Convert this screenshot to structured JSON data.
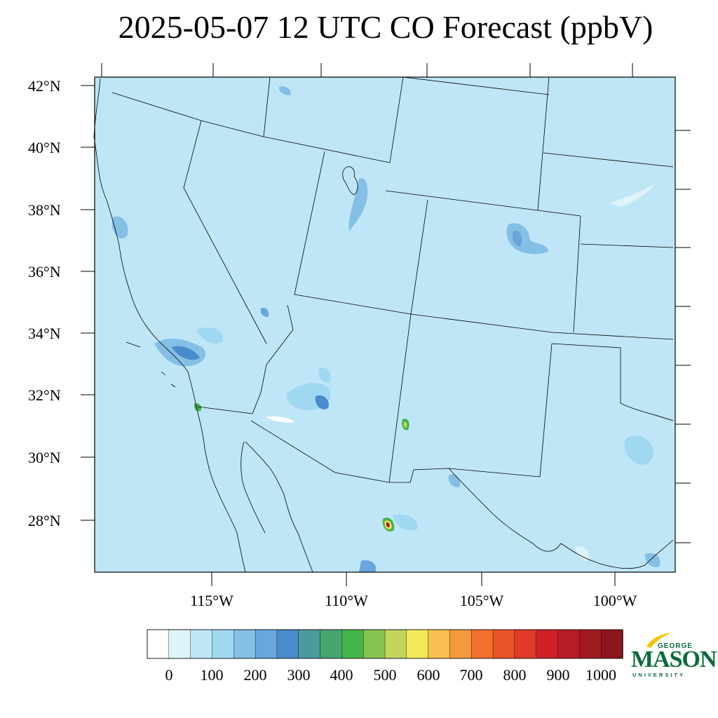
{
  "title": "2025-05-07 12 UTC CO Forecast (ppbV)",
  "lat_labels": [
    "42°N",
    "40°N",
    "38°N",
    "36°N",
    "34°N",
    "32°N",
    "30°N",
    "28°N"
  ],
  "lon_labels": [
    "115°W",
    "110°W",
    "105°W",
    "100°W"
  ],
  "colorbar": {
    "labels": [
      "0",
      "100",
      "200",
      "300",
      "400",
      "500",
      "600",
      "700",
      "800",
      "900",
      "1000"
    ],
    "colors": [
      "#ffffff",
      "#dff3fb",
      "#bfe6f7",
      "#a0d8f2",
      "#84bfe6",
      "#68a6dc",
      "#4a8bcc",
      "#4a9c9c",
      "#48a570",
      "#45b44a",
      "#86c450",
      "#c2d65a",
      "#f5e85a",
      "#f8c050",
      "#f59a3c",
      "#f2702c",
      "#ea5228",
      "#e03a28",
      "#d02028",
      "#b81c24",
      "#a01a20",
      "#8c161c"
    ]
  },
  "map": {
    "background_color": "#bfe6f7",
    "plumes": [
      {
        "name": "southern-california",
        "level": "200-300",
        "color": "#68a6dc"
      },
      {
        "name": "phoenix",
        "level": "200-300",
        "color": "#68a6dc"
      },
      {
        "name": "denver",
        "level": "200-300",
        "color": "#84bfe6"
      },
      {
        "name": "salt-lake-city",
        "level": "200-300",
        "color": "#84bfe6"
      },
      {
        "name": "new-mexico-fire",
        "level": "400-500",
        "color": "#45b44a"
      },
      {
        "name": "chihuahua-fire",
        "level": "900-1000",
        "color": "#a01a20"
      }
    ]
  },
  "logo": {
    "line1": "GEORGE",
    "line2": "MASON",
    "line3": "UNIVERSITY"
  }
}
